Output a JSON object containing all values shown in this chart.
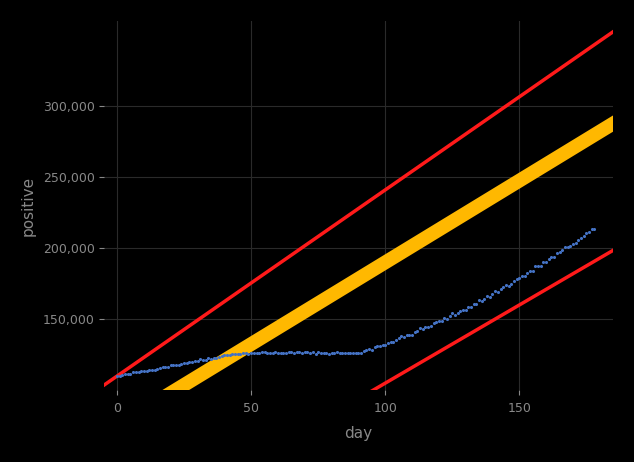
{
  "background_color": "#000000",
  "plot_bg_color": "#000000",
  "grid_color": "#2a2a2a",
  "tick_color": "#888888",
  "label_color": "#888888",
  "xlabel": "day",
  "ylabel": "positive",
  "xlim": [
    -5,
    185
  ],
  "ylim": [
    100000,
    360000
  ],
  "yticks": [
    150000,
    200000,
    250000,
    300000
  ],
  "xticks": [
    0,
    50,
    100,
    150
  ],
  "red_line1_slope": 1310,
  "red_line1_intercept": 110000,
  "red_line2_slope": 1100,
  "red_line2_intercept": -5000,
  "yellow_slope": 1150,
  "yellow_intercept": 75000,
  "yellow_linewidth": 10,
  "red_linewidth": 2.5,
  "blue_dot_color": "#4472C4",
  "blue_dot_size": 5,
  "font_size_axis_label": 11,
  "font_size_tick": 9
}
